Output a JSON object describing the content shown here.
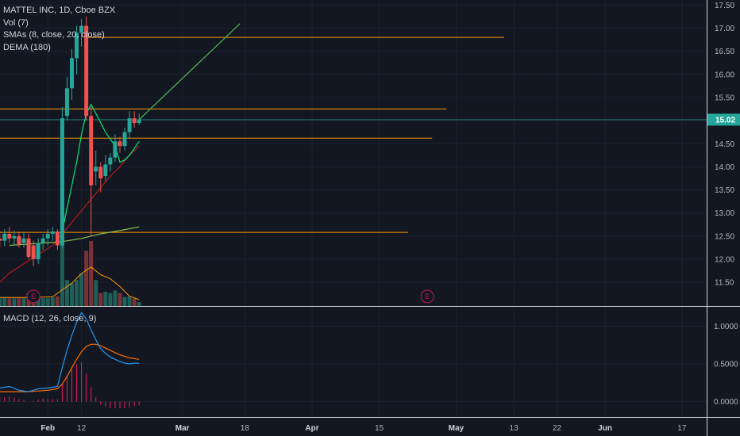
{
  "legend": {
    "symbol": "MATTEL INC, 1D, Cboe BZX",
    "vol": "Vol (7)",
    "smas": "SMAs (8, close, 20, close)",
    "dema": "DEMA (180)",
    "macd": "MACD (12, 26, close, 9)"
  },
  "last_price": {
    "value": 15.02,
    "label": "15.02",
    "color": "#26a69a"
  },
  "colors": {
    "up": "#26a69a",
    "down": "#ef5350",
    "sma_fast": "#00e676",
    "sma_slow": "#8bc34a",
    "dema": "#b71c1c",
    "hline": "#ff9800",
    "projection": "#4caf50",
    "vol_ma": "#ff9800",
    "macd": "#2196f3",
    "signal": "#ff6d00",
    "hist": "#e91e63",
    "earnings": "#c2185b"
  },
  "chart_data": [
    {
      "type": "candlestick",
      "title": "MATTEL INC, 1D, Cboe BZX",
      "ylim": [
        11.2,
        17.5
      ],
      "y_ticks": [
        "17.50",
        "17.00",
        "16.50",
        "16.00",
        "15.50",
        "15.00",
        "14.50",
        "14.00",
        "13.50",
        "13.00",
        "12.50",
        "12.00",
        "11.50"
      ],
      "x_ticks": [
        {
          "label": "Feb",
          "day": 5,
          "bold": true
        },
        {
          "label": "12",
          "day": 12,
          "bold": false
        },
        {
          "label": "Mar",
          "day": 33,
          "bold": true
        },
        {
          "label": "18",
          "day": 46,
          "bold": false
        },
        {
          "label": "Apr",
          "day": 60,
          "bold": true
        },
        {
          "label": "15",
          "day": 74,
          "bold": false
        },
        {
          "label": "May",
          "day": 90,
          "bold": true
        },
        {
          "label": "13",
          "day": 102,
          "bold": false
        },
        {
          "label": "22",
          "day": 111,
          "bold": false
        },
        {
          "label": "Jun",
          "day": 121,
          "bold": true
        },
        {
          "label": "17",
          "day": 137,
          "bold": false
        }
      ],
      "candles": [
        {
          "day": -5,
          "o": 12.45,
          "h": 12.62,
          "l": 12.25,
          "c": 12.4
        },
        {
          "day": -4,
          "o": 12.4,
          "h": 12.65,
          "l": 12.28,
          "c": 12.55
        },
        {
          "day": -3,
          "o": 12.55,
          "h": 12.7,
          "l": 12.35,
          "c": 12.45
        },
        {
          "day": -2,
          "o": 12.45,
          "h": 12.62,
          "l": 12.3,
          "c": 12.5
        },
        {
          "day": -1,
          "o": 12.5,
          "h": 12.6,
          "l": 12.25,
          "c": 12.32
        },
        {
          "day": 0,
          "o": 12.35,
          "h": 12.6,
          "l": 12.25,
          "c": 12.45
        },
        {
          "day": 1,
          "o": 12.45,
          "h": 12.55,
          "l": 12.0,
          "c": 12.05
        },
        {
          "day": 2,
          "o": 12.3,
          "h": 12.4,
          "l": 11.85,
          "c": 12.0
        },
        {
          "day": 3,
          "o": 12.0,
          "h": 12.45,
          "l": 11.9,
          "c": 12.35
        },
        {
          "day": 4,
          "o": 12.35,
          "h": 12.55,
          "l": 12.2,
          "c": 12.45
        },
        {
          "day": 5,
          "o": 12.45,
          "h": 12.65,
          "l": 12.3,
          "c": 12.55
        },
        {
          "day": 6,
          "o": 12.55,
          "h": 12.7,
          "l": 12.4,
          "c": 12.6
        },
        {
          "day": 7,
          "o": 12.6,
          "h": 12.65,
          "l": 12.2,
          "c": 12.3
        },
        {
          "day": 8,
          "o": 12.3,
          "h": 15.3,
          "l": 12.25,
          "c": 15.05
        },
        {
          "day": 9,
          "o": 15.1,
          "h": 15.95,
          "l": 15.0,
          "c": 15.7
        },
        {
          "day": 10,
          "o": 15.7,
          "h": 16.55,
          "l": 15.45,
          "c": 16.35
        },
        {
          "day": 11,
          "o": 16.35,
          "h": 17.05,
          "l": 16.0,
          "c": 16.9
        },
        {
          "day": 12,
          "o": 16.9,
          "h": 17.2,
          "l": 16.6,
          "c": 17.05
        },
        {
          "day": 13,
          "o": 17.05,
          "h": 17.25,
          "l": 15.0,
          "c": 15.1
        },
        {
          "day": 14,
          "o": 15.1,
          "h": 15.3,
          "l": 12.5,
          "c": 13.6
        },
        {
          "day": 15,
          "o": 13.9,
          "h": 14.35,
          "l": 13.6,
          "c": 14.0
        },
        {
          "day": 16,
          "o": 14.0,
          "h": 14.1,
          "l": 13.45,
          "c": 13.75
        },
        {
          "day": 17,
          "o": 13.8,
          "h": 14.25,
          "l": 13.7,
          "c": 14.05
        },
        {
          "day": 18,
          "o": 14.05,
          "h": 14.3,
          "l": 13.9,
          "c": 14.2
        },
        {
          "day": 19,
          "o": 14.2,
          "h": 14.7,
          "l": 14.1,
          "c": 14.55
        },
        {
          "day": 20,
          "o": 14.55,
          "h": 14.65,
          "l": 14.3,
          "c": 14.45
        },
        {
          "day": 21,
          "o": 14.45,
          "h": 14.85,
          "l": 14.35,
          "c": 14.75
        },
        {
          "day": 22,
          "o": 14.75,
          "h": 15.2,
          "l": 14.6,
          "c": 15.05
        },
        {
          "day": 23,
          "o": 15.05,
          "h": 15.2,
          "l": 14.85,
          "c": 14.95
        },
        {
          "day": 24,
          "o": 14.95,
          "h": 15.15,
          "l": 14.9,
          "c": 15.02
        }
      ],
      "sma_fast": [
        {
          "day": 8,
          "v": 12.6
        },
        {
          "day": 9,
          "v": 13.1
        },
        {
          "day": 10,
          "v": 13.6
        },
        {
          "day": 11,
          "v": 14.1
        },
        {
          "day": 12,
          "v": 14.7
        },
        {
          "day": 13,
          "v": 15.15
        },
        {
          "day": 14,
          "v": 15.35
        },
        {
          "day": 15,
          "v": 15.15
        },
        {
          "day": 16,
          "v": 14.95
        },
        {
          "day": 17,
          "v": 14.75
        },
        {
          "day": 18,
          "v": 14.6
        },
        {
          "day": 19,
          "v": 14.45
        },
        {
          "day": 20,
          "v": 14.1
        },
        {
          "day": 21,
          "v": 14.15
        },
        {
          "day": 22,
          "v": 14.25
        },
        {
          "day": 23,
          "v": 14.4
        },
        {
          "day": 24,
          "v": 14.55
        }
      ],
      "sma_slow": [
        {
          "day": -3,
          "v": 12.3
        },
        {
          "day": 0,
          "v": 12.32
        },
        {
          "day": 4,
          "v": 12.35
        },
        {
          "day": 8,
          "v": 12.38
        },
        {
          "day": 12,
          "v": 12.45
        },
        {
          "day": 16,
          "v": 12.55
        },
        {
          "day": 20,
          "v": 12.62
        },
        {
          "day": 24,
          "v": 12.7
        }
      ],
      "dema": [
        {
          "day": -5,
          "v": 11.5
        },
        {
          "day": -3,
          "v": 11.7
        },
        {
          "day": 0,
          "v": 11.9
        },
        {
          "day": 3,
          "v": 12.1
        },
        {
          "day": 6,
          "v": 12.3
        },
        {
          "day": 8,
          "v": 12.55
        },
        {
          "day": 10,
          "v": 12.8
        },
        {
          "day": 12,
          "v": 13.05
        },
        {
          "day": 14,
          "v": 13.3
        },
        {
          "day": 16,
          "v": 13.55
        },
        {
          "day": 18,
          "v": 13.8
        },
        {
          "day": 20,
          "v": 14.0
        },
        {
          "day": 22,
          "v": 14.25
        },
        {
          "day": 24,
          "v": 14.45
        }
      ],
      "hlines": [
        {
          "price": 16.8,
          "day_from": 13,
          "day_to": 100
        },
        {
          "price": 15.25,
          "day_from": -5,
          "day_to": 88
        },
        {
          "price": 14.62,
          "day_from": -5,
          "day_to": 85
        },
        {
          "price": 12.58,
          "day_from": -5,
          "day_to": 80
        }
      ],
      "projection": [
        {
          "day": 24,
          "v": 15.02
        },
        {
          "day": 45,
          "v": 17.1
        }
      ],
      "volume": [
        {
          "day": -5,
          "v": 0.12,
          "up": true
        },
        {
          "day": -4,
          "v": 0.13,
          "up": true
        },
        {
          "day": -3,
          "v": 0.12,
          "up": false
        },
        {
          "day": -2,
          "v": 0.12,
          "up": true
        },
        {
          "day": -1,
          "v": 0.13,
          "up": false
        },
        {
          "day": 0,
          "v": 0.12,
          "up": true
        },
        {
          "day": 1,
          "v": 0.2,
          "up": false
        },
        {
          "day": 2,
          "v": 0.15,
          "up": false
        },
        {
          "day": 3,
          "v": 0.14,
          "up": true
        },
        {
          "day": 4,
          "v": 0.12,
          "up": true
        },
        {
          "day": 5,
          "v": 0.12,
          "up": true
        },
        {
          "day": 6,
          "v": 0.13,
          "up": true
        },
        {
          "day": 7,
          "v": 0.15,
          "up": false
        },
        {
          "day": 8,
          "v": 0.95,
          "up": true
        },
        {
          "day": 9,
          "v": 0.4,
          "up": true
        },
        {
          "day": 10,
          "v": 0.35,
          "up": true
        },
        {
          "day": 11,
          "v": 0.4,
          "up": true
        },
        {
          "day": 12,
          "v": 0.5,
          "up": true
        },
        {
          "day": 13,
          "v": 0.85,
          "up": false
        },
        {
          "day": 14,
          "v": 1.0,
          "up": false
        },
        {
          "day": 15,
          "v": 0.4,
          "up": true
        },
        {
          "day": 16,
          "v": 0.2,
          "up": false
        },
        {
          "day": 17,
          "v": 0.22,
          "up": true
        },
        {
          "day": 18,
          "v": 0.2,
          "up": true
        },
        {
          "day": 19,
          "v": 0.24,
          "up": true
        },
        {
          "day": 20,
          "v": 0.2,
          "up": false
        },
        {
          "day": 21,
          "v": 0.14,
          "up": true
        },
        {
          "day": 22,
          "v": 0.15,
          "up": true
        },
        {
          "day": 23,
          "v": 0.12,
          "up": false
        },
        {
          "day": 24,
          "v": 0.06,
          "up": true
        }
      ],
      "volume_ma": [
        {
          "day": -5,
          "v": 0.13
        },
        {
          "day": 0,
          "v": 0.13
        },
        {
          "day": 6,
          "v": 0.14
        },
        {
          "day": 8,
          "v": 0.25
        },
        {
          "day": 10,
          "v": 0.35
        },
        {
          "day": 12,
          "v": 0.5
        },
        {
          "day": 14,
          "v": 0.6
        },
        {
          "day": 16,
          "v": 0.48
        },
        {
          "day": 18,
          "v": 0.42
        },
        {
          "day": 20,
          "v": 0.3
        },
        {
          "day": 22,
          "v": 0.15
        },
        {
          "day": 24,
          "v": 0.1
        }
      ],
      "earnings": [
        {
          "day": 2,
          "label": "E"
        },
        {
          "day": 84,
          "label": "E"
        }
      ]
    },
    {
      "type": "line",
      "title": "MACD (12, 26, close, 9)",
      "ylim": [
        -0.12,
        1.25
      ],
      "y_ticks": [
        "1.0000",
        "0.5000",
        "0.0000"
      ],
      "series": [
        {
          "name": "MACD",
          "points": [
            {
              "day": -5,
              "v": 0.18
            },
            {
              "day": -3,
              "v": 0.2
            },
            {
              "day": -1,
              "v": 0.15
            },
            {
              "day": 1,
              "v": 0.13
            },
            {
              "day": 3,
              "v": 0.17
            },
            {
              "day": 5,
              "v": 0.18
            },
            {
              "day": 7,
              "v": 0.2
            },
            {
              "day": 8,
              "v": 0.45
            },
            {
              "day": 9,
              "v": 0.68
            },
            {
              "day": 10,
              "v": 0.88
            },
            {
              "day": 11,
              "v": 1.05
            },
            {
              "day": 12,
              "v": 1.18
            },
            {
              "day": 13,
              "v": 1.1
            },
            {
              "day": 14,
              "v": 0.95
            },
            {
              "day": 15,
              "v": 0.82
            },
            {
              "day": 16,
              "v": 0.7
            },
            {
              "day": 17,
              "v": 0.64
            },
            {
              "day": 18,
              "v": 0.59
            },
            {
              "day": 19,
              "v": 0.56
            },
            {
              "day": 20,
              "v": 0.53
            },
            {
              "day": 21,
              "v": 0.51
            },
            {
              "day": 22,
              "v": 0.5
            },
            {
              "day": 23,
              "v": 0.51
            },
            {
              "day": 24,
              "v": 0.51
            }
          ]
        },
        {
          "name": "Signal",
          "points": [
            {
              "day": -5,
              "v": 0.13
            },
            {
              "day": -3,
              "v": 0.13
            },
            {
              "day": -1,
              "v": 0.13
            },
            {
              "day": 1,
              "v": 0.13
            },
            {
              "day": 3,
              "v": 0.14
            },
            {
              "day": 5,
              "v": 0.15
            },
            {
              "day": 7,
              "v": 0.17
            },
            {
              "day": 8,
              "v": 0.23
            },
            {
              "day": 9,
              "v": 0.33
            },
            {
              "day": 10,
              "v": 0.45
            },
            {
              "day": 11,
              "v": 0.56
            },
            {
              "day": 12,
              "v": 0.66
            },
            {
              "day": 13,
              "v": 0.73
            },
            {
              "day": 14,
              "v": 0.76
            },
            {
              "day": 15,
              "v": 0.76
            },
            {
              "day": 16,
              "v": 0.74
            },
            {
              "day": 17,
              "v": 0.71
            },
            {
              "day": 18,
              "v": 0.68
            },
            {
              "day": 19,
              "v": 0.65
            },
            {
              "day": 20,
              "v": 0.62
            },
            {
              "day": 21,
              "v": 0.6
            },
            {
              "day": 22,
              "v": 0.58
            },
            {
              "day": 23,
              "v": 0.57
            },
            {
              "day": 24,
              "v": 0.56
            }
          ]
        }
      ],
      "histogram": [
        {
          "day": -5,
          "v": 0.05
        },
        {
          "day": -4,
          "v": 0.06
        },
        {
          "day": -3,
          "v": 0.07
        },
        {
          "day": -2,
          "v": 0.05
        },
        {
          "day": -1,
          "v": 0.03
        },
        {
          "day": 0,
          "v": 0.02
        },
        {
          "day": 1,
          "v": 0.0
        },
        {
          "day": 2,
          "v": 0.01
        },
        {
          "day": 3,
          "v": 0.03
        },
        {
          "day": 4,
          "v": 0.04
        },
        {
          "day": 5,
          "v": 0.03
        },
        {
          "day": 6,
          "v": 0.03
        },
        {
          "day": 7,
          "v": 0.03
        },
        {
          "day": 8,
          "v": 0.22
        },
        {
          "day": 9,
          "v": 0.35
        },
        {
          "day": 10,
          "v": 0.43
        },
        {
          "day": 11,
          "v": 0.49
        },
        {
          "day": 12,
          "v": 0.52
        },
        {
          "day": 13,
          "v": 0.37
        },
        {
          "day": 14,
          "v": 0.19
        },
        {
          "day": 15,
          "v": 0.06
        },
        {
          "day": 16,
          "v": -0.04
        },
        {
          "day": 17,
          "v": -0.07
        },
        {
          "day": 18,
          "v": -0.09
        },
        {
          "day": 19,
          "v": -0.09
        },
        {
          "day": 20,
          "v": -0.09
        },
        {
          "day": 21,
          "v": -0.09
        },
        {
          "day": 22,
          "v": -0.08
        },
        {
          "day": 23,
          "v": -0.06
        },
        {
          "day": 24,
          "v": -0.05
        }
      ]
    }
  ]
}
